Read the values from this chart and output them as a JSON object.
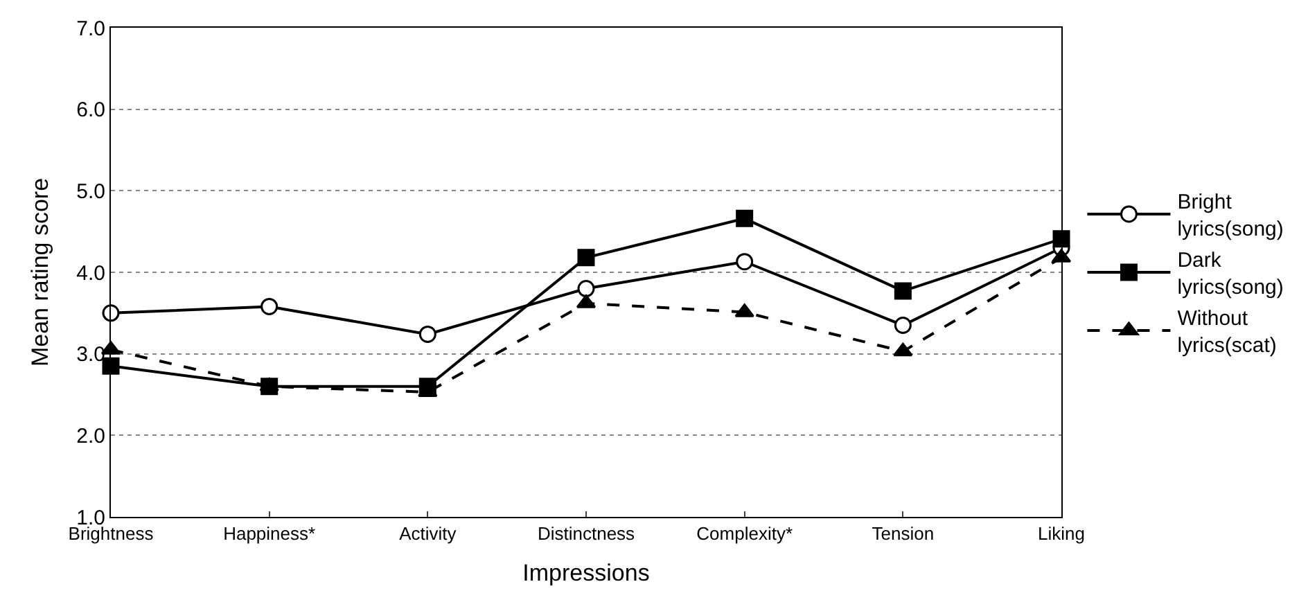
{
  "chart_data": {
    "type": "line",
    "xlabel": "Impressions",
    "ylabel": "Mean rating score",
    "categories": [
      "Brightness",
      "Happiness*",
      "Activity",
      "Distinctness",
      "Complexity*",
      "Tension",
      "Liking"
    ],
    "series": [
      {
        "name": "Bright lyrics(song)",
        "color": "#000000",
        "marker": "circle",
        "line_style": "solid",
        "values": [
          3.5,
          3.58,
          3.24,
          3.8,
          4.13,
          3.35,
          4.3
        ]
      },
      {
        "name": "Dark lyrics(song)",
        "color": "#000000",
        "marker": "square",
        "line_style": "solid",
        "values": [
          2.85,
          2.6,
          2.6,
          4.18,
          4.66,
          3.77,
          4.41
        ]
      },
      {
        "name": "Without lyrics(scat)",
        "color": "#000000",
        "marker": "triangle",
        "line_style": "dashed",
        "values": [
          3.05,
          2.6,
          2.53,
          3.62,
          3.51,
          3.03,
          4.18
        ]
      }
    ],
    "ylim": [
      1,
      7
    ],
    "yticks": [
      {
        "value": 1,
        "label": "1.0"
      },
      {
        "value": 2,
        "label": "2.0"
      },
      {
        "value": 3,
        "label": "3.0"
      },
      {
        "value": 4,
        "label": "4.0"
      },
      {
        "value": 5,
        "label": "5.0"
      },
      {
        "value": 6,
        "label": "6.0"
      },
      {
        "value": 7,
        "label": "7.0"
      }
    ],
    "grid": "y",
    "legend": "right"
  }
}
